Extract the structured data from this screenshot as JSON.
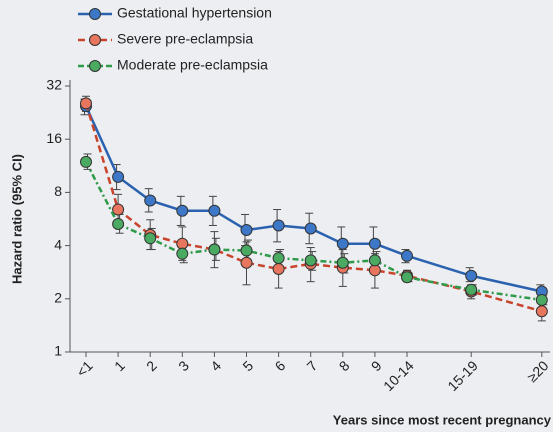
{
  "chart_data": {
    "type": "line",
    "y_label": "Hazard ratio (95% CI)",
    "x_label": "Years since most recent pregnancy",
    "categories": [
      "<1",
      "1",
      "2",
      "3",
      "4",
      "5",
      "6",
      "7",
      "8",
      "9",
      "10-14",
      "15-19",
      "≥20"
    ],
    "ylim": [
      1,
      32
    ],
    "yticks": [
      1,
      2,
      4,
      8,
      16,
      32
    ],
    "log_y": true,
    "grid": false,
    "series": [
      {
        "name": "Gestational hypertension",
        "color": "#2a62b0",
        "marker_color": "#3d78c8",
        "dash": "solid",
        "values": [
          24.6,
          9.8,
          7.2,
          6.3,
          6.3,
          4.9,
          5.2,
          5.0,
          4.1,
          4.1,
          3.5,
          2.7,
          2.2
        ],
        "lower": [
          22,
          8.3,
          6.2,
          5.2,
          5.2,
          4.0,
          4.2,
          4.1,
          3.3,
          3.3,
          3.2,
          2.5,
          2.0
        ],
        "upper": [
          27,
          11.5,
          8.4,
          7.6,
          7.6,
          6.0,
          6.4,
          6.1,
          5.1,
          5.1,
          3.8,
          3.0,
          2.4
        ]
      },
      {
        "name": "Severe pre-eclampsia",
        "color": "#c8442c",
        "marker_color": "#e8765e",
        "dash": "dashed",
        "values": [
          25.5,
          6.4,
          4.6,
          4.1,
          3.8,
          3.2,
          2.95,
          3.15,
          3.0,
          2.9,
          2.7,
          2.2,
          1.7
        ],
        "lower": [
          23,
          5.3,
          3.8,
          3.3,
          3.0,
          2.4,
          2.3,
          2.5,
          2.35,
          2.3,
          2.5,
          2.0,
          1.5
        ],
        "upper": [
          28,
          7.8,
          5.6,
          5.1,
          4.8,
          4.2,
          3.7,
          3.9,
          3.8,
          3.6,
          2.9,
          2.4,
          1.9
        ]
      },
      {
        "name": "Moderate pre-eclampsia",
        "color": "#2e9a4a",
        "marker_color": "#4aaa62",
        "dash": "dashdot",
        "values": [
          11.9,
          5.3,
          4.4,
          3.6,
          3.8,
          3.75,
          3.4,
          3.3,
          3.2,
          3.3,
          2.65,
          2.25,
          1.97
        ],
        "lower": [
          10.8,
          4.7,
          3.8,
          3.2,
          3.3,
          3.3,
          3.0,
          2.9,
          2.8,
          2.9,
          2.5,
          2.1,
          1.85
        ],
        "upper": [
          13.2,
          6.0,
          5.0,
          4.1,
          4.4,
          4.3,
          3.8,
          3.7,
          3.6,
          3.7,
          2.8,
          2.4,
          2.1
        ]
      }
    ]
  }
}
